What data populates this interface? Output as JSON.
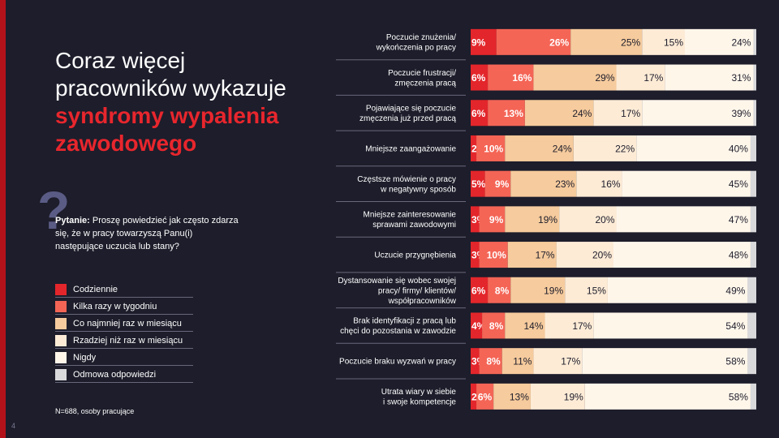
{
  "page": {
    "title_line1": "Coraz więcej",
    "title_line2": "pracowników wykazuje",
    "title_highlight1": "syndromy wypalenia",
    "title_highlight2": "zawodowego",
    "question_mark": "?",
    "question_label": "Pytanie:",
    "question_text": " Proszę powiedzieć jak często zdarza się, że w pracy towarzyszą Panu(i) następujące uczucia lub stany?",
    "footnote": "N=688, osoby pracujące",
    "page_number": "4"
  },
  "colors": {
    "background": "#1d1d2b",
    "accent": "#e8262d",
    "label_dark": "#1d1d2b",
    "label_light": "#ffffff"
  },
  "chart_data": {
    "type": "bar",
    "orientation": "horizontal",
    "stacked": true,
    "xlim": [
      0,
      100
    ],
    "legend_position": "left",
    "categories": [
      [
        "Poczucie znużenia/",
        "wykończenia po pracy"
      ],
      [
        "Poczucie frustracji/",
        "zmęczenia pracą"
      ],
      [
        "Pojawiające się poczucie",
        "zmęczenia już przed pracą"
      ],
      [
        "Mniejsze zaangażowanie"
      ],
      [
        "Częstsze mówienie o pracy",
        "w negatywny sposób"
      ],
      [
        "Mniejsze zainteresowanie",
        "sprawami zawodowymi"
      ],
      [
        "Uczucie przygnębienia"
      ],
      [
        "Dystansowanie się wobec swojej",
        "pracy/ firmy/ klientów/",
        "współpracowników"
      ],
      [
        "Brak identyfikacji z pracą lub",
        "chęci do pozostania w zawodzie"
      ],
      [
        "Poczucie braku wyzwań w pracy"
      ],
      [
        "Utrata wiary w siebie",
        "i swoje kompetencje"
      ]
    ],
    "series": [
      {
        "name": "Codziennie",
        "color": "#e3262b",
        "values": [
          9,
          6,
          6,
          2,
          5,
          3,
          3,
          6,
          4,
          3,
          2
        ],
        "labels": [
          "9%",
          "6%",
          "6%",
          "2%",
          "5%",
          "3%",
          "3%",
          "6%",
          "4%",
          "3%",
          "2%"
        ]
      },
      {
        "name": "Kilka razy w tygodniu",
        "color": "#f46556",
        "values": [
          26,
          16,
          13,
          10,
          9,
          9,
          10,
          8,
          8,
          8,
          6
        ],
        "labels": [
          "26%",
          "16%",
          "13%",
          "10%",
          "9%",
          "9%",
          "10%",
          "8%",
          "8%",
          "8%",
          "6%"
        ]
      },
      {
        "name": "Co najmniej raz w miesiącu",
        "color": "#f6cb9d",
        "values": [
          25,
          29,
          24,
          24,
          23,
          19,
          17,
          19,
          14,
          11,
          13
        ],
        "labels": [
          "25%",
          "29%",
          "24%",
          "24%",
          "23%",
          "19%",
          "17%",
          "19%",
          "14%",
          "11%",
          "13%"
        ]
      },
      {
        "name": "Rzadziej niż raz w miesiącu",
        "color": "#fdebd6",
        "values": [
          15,
          17,
          17,
          22,
          16,
          20,
          20,
          15,
          17,
          17,
          19
        ],
        "labels": [
          "15%",
          "17%",
          "17%",
          "22%",
          "16%",
          "20%",
          "20%",
          "15%",
          "17%",
          "17%",
          "19%"
        ]
      },
      {
        "name": "Nigdy",
        "color": "#fff6ea",
        "values": [
          24,
          31,
          39,
          40,
          45,
          47,
          48,
          49,
          54,
          58,
          58
        ],
        "labels": [
          "24%",
          "31%",
          "39%",
          "40%",
          "45%",
          "47%",
          "48%",
          "49%",
          "54%",
          "58%",
          "58%"
        ]
      },
      {
        "name": "Odmowa odpowiedzi",
        "color": "#d9d9dc",
        "values": [
          1,
          1,
          1,
          2,
          2,
          2,
          2,
          3,
          3,
          3,
          2
        ],
        "labels": [
          "",
          "",
          "",
          "",
          "",
          "",
          "",
          "",
          "",
          "",
          ""
        ]
      }
    ]
  }
}
